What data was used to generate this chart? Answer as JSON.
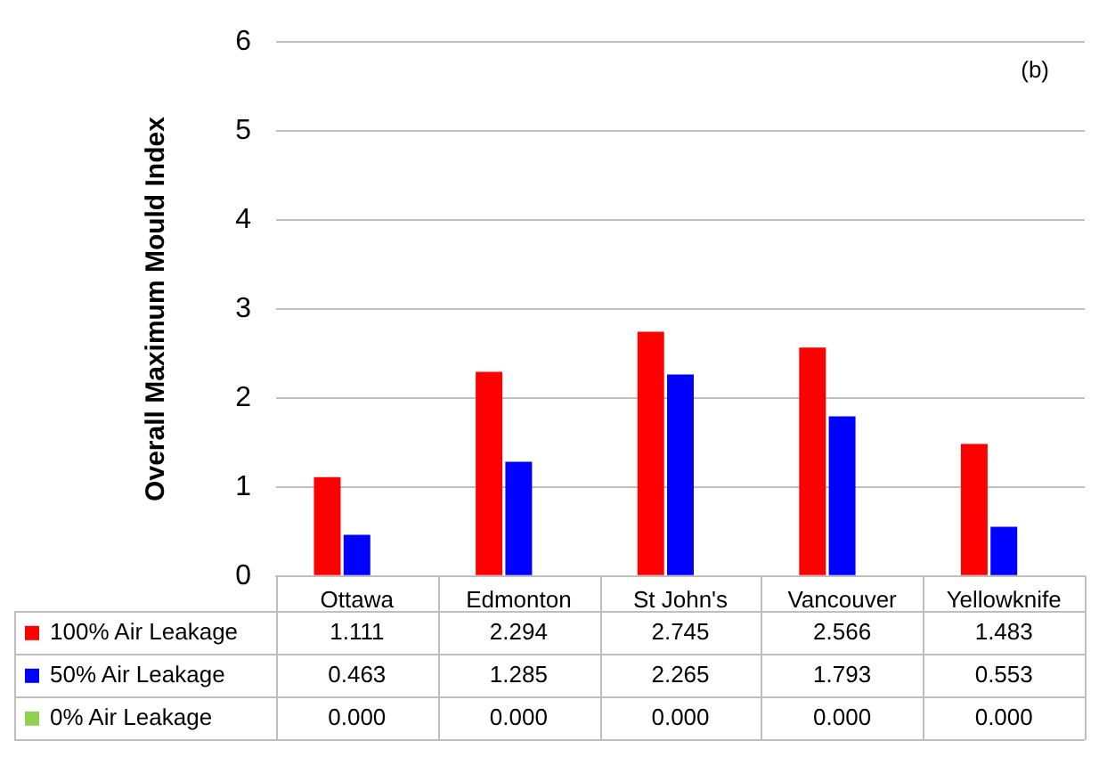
{
  "chart_data": {
    "type": "bar",
    "ylabel": "Overall Maximum Mould Index",
    "annotations": [
      "(b)"
    ],
    "categories": [
      "Ottawa",
      "Edmonton",
      "St John's",
      "Vancouver",
      "Yellowknife"
    ],
    "series": [
      {
        "name": "100% Air Leakage",
        "color": "#ff0000",
        "values": [
          1.111,
          2.294,
          2.745,
          2.566,
          1.483
        ],
        "value_labels": [
          "1.111",
          "2.294",
          "2.745",
          "2.566",
          "1.483"
        ]
      },
      {
        "name": "50% Air Leakage",
        "color": "#0000ff",
        "values": [
          0.463,
          1.285,
          2.265,
          1.793,
          0.553
        ],
        "value_labels": [
          "0.463",
          "1.285",
          "2.265",
          "1.793",
          "0.553"
        ]
      },
      {
        "name": "0% Air Leakage",
        "color": "#92d050",
        "values": [
          0,
          0,
          0,
          0,
          0
        ],
        "value_labels": [
          "0.000",
          "0.000",
          "0.000",
          "0.000",
          "0.000"
        ]
      }
    ],
    "ylim": [
      0,
      6
    ],
    "yticks": [
      0,
      1,
      2,
      3,
      4,
      5,
      6
    ],
    "grid": "y",
    "legend": "bottom"
  }
}
